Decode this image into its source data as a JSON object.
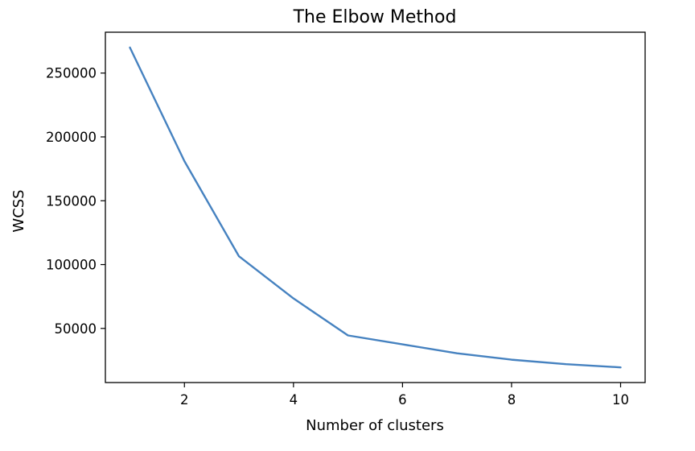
{
  "chart_data": {
    "type": "line",
    "title": "The Elbow Method",
    "xlabel": "Number of clusters",
    "ylabel": "WCSS",
    "x": [
      1,
      2,
      3,
      4,
      5,
      6,
      7,
      8,
      9,
      10
    ],
    "series": [
      {
        "values": [
          270000,
          181000,
          106500,
          73500,
          44500,
          37500,
          30500,
          25500,
          22000,
          19500
        ]
      }
    ],
    "xlim": [
      0.55,
      10.45
    ],
    "ylim": [
      7600,
      282000
    ],
    "xticks": [
      2,
      4,
      6,
      8,
      10
    ],
    "yticks": [
      50000,
      100000,
      150000,
      200000,
      250000
    ],
    "xtick_labels": [
      "2",
      "4",
      "6",
      "8",
      "10"
    ],
    "ytick_labels": [
      "50000",
      "100000",
      "150000",
      "200000",
      "250000"
    ],
    "grid": false,
    "legend": "none",
    "colors": {
      "line": "#4682c0",
      "frame": "#000000"
    }
  }
}
